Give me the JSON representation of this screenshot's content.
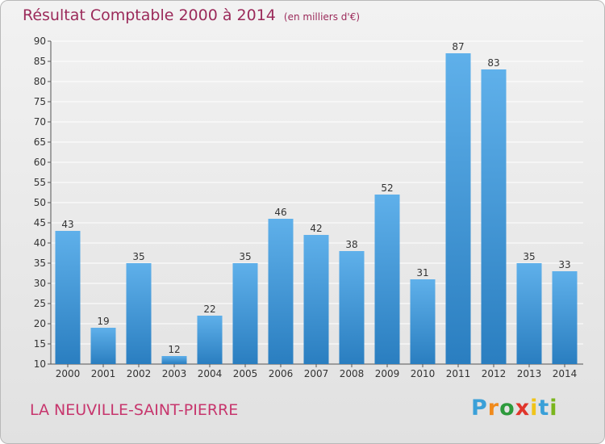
{
  "header": {
    "title": "Résultat Comptable 2000 à 2014",
    "units": "(en milliers d'€)"
  },
  "footer": {
    "town": "LA NEUVILLE-SAINT-PIERRE"
  },
  "logo": {
    "letters": [
      "P",
      "r",
      "o",
      "x",
      "i",
      "t",
      "i"
    ],
    "colors": [
      "#3aa0d8",
      "#f08a1c",
      "#2d9a3c",
      "#e0352b",
      "#f0c419",
      "#3aa0d8",
      "#7ab51d"
    ]
  },
  "colors": {
    "bar_light": "#5fb0ea",
    "bar_dark": "#2a7ec0",
    "text": "#333333",
    "grid": "#ffffff"
  },
  "chart_data": {
    "type": "bar",
    "title": "Résultat Comptable 2000 à 2014",
    "subtitle": "(en milliers d'€)",
    "categories": [
      "2000",
      "2001",
      "2002",
      "2003",
      "2004",
      "2005",
      "2006",
      "2007",
      "2008",
      "2009",
      "2010",
      "2011",
      "2012",
      "2013",
      "2014"
    ],
    "values": [
      43,
      19,
      35,
      12,
      22,
      35,
      46,
      42,
      38,
      52,
      31,
      87,
      83,
      35,
      33
    ],
    "ylim": [
      10,
      90
    ],
    "yticks": [
      10,
      15,
      20,
      25,
      30,
      35,
      40,
      45,
      50,
      55,
      60,
      65,
      70,
      75,
      80,
      85,
      90
    ],
    "grid": true,
    "data_labels": true
  }
}
